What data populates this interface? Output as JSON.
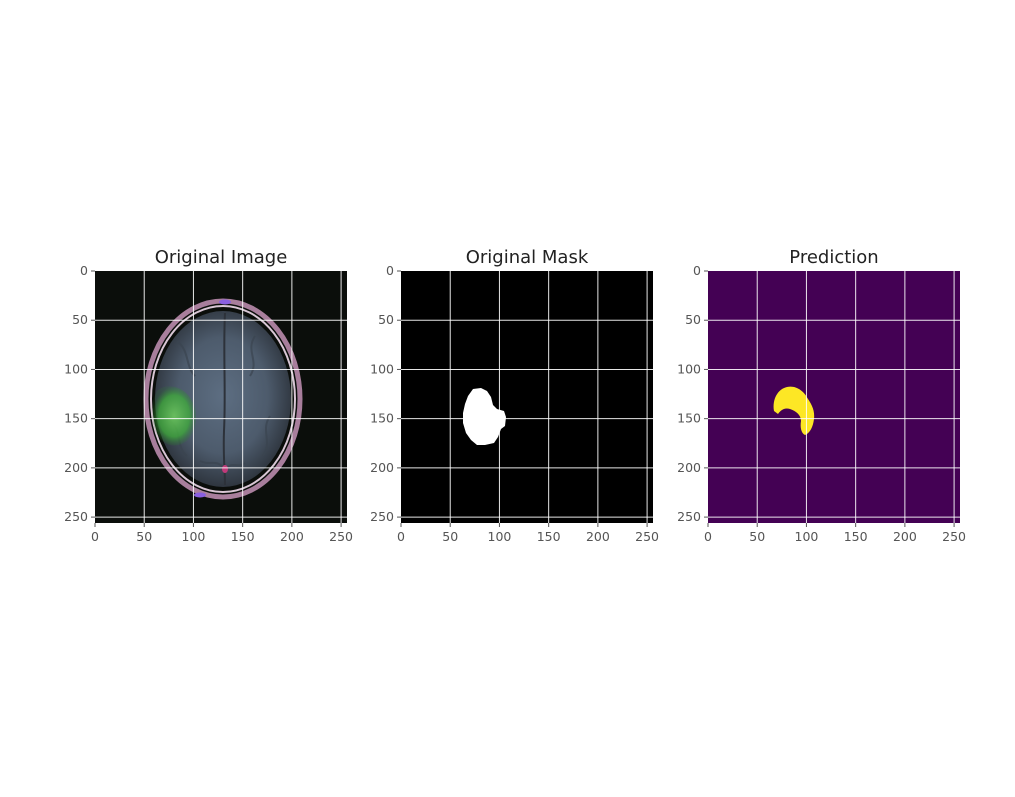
{
  "panels": [
    {
      "title": "Original Image",
      "kind": "mri",
      "background_color": "#0b0e0b",
      "x_ticks": [
        "0",
        "50",
        "100",
        "150",
        "200",
        "250"
      ],
      "y_ticks": [
        "0",
        "50",
        "100",
        "150",
        "200",
        "250"
      ]
    },
    {
      "title": "Original Mask",
      "kind": "mask",
      "background_color": "#000000",
      "foreground_color": "#ffffff",
      "x_ticks": [
        "0",
        "50",
        "100",
        "150",
        "200",
        "250"
      ],
      "y_ticks": [
        "0",
        "50",
        "100",
        "150",
        "200",
        "250"
      ]
    },
    {
      "title": "Prediction",
      "kind": "prediction",
      "background_color": "#440154",
      "foreground_color": "#fde725",
      "x_ticks": [
        "0",
        "50",
        "100",
        "150",
        "200",
        "250"
      ],
      "y_ticks": [
        "0",
        "50",
        "100",
        "150",
        "200",
        "250"
      ]
    }
  ],
  "axis_range": [
    0,
    256
  ],
  "grid": true
}
